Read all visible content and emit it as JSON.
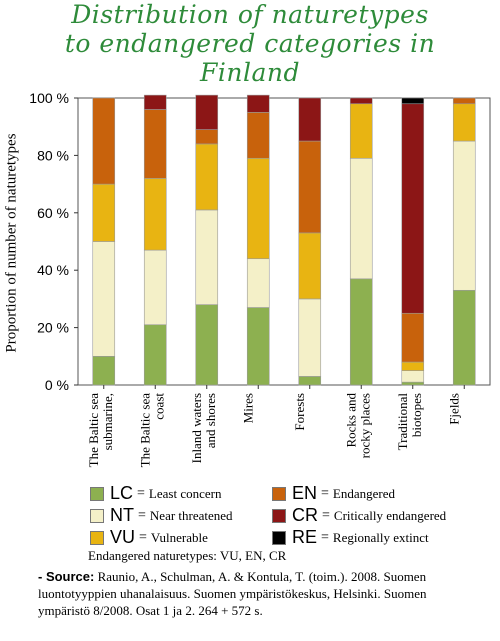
{
  "title_lines": [
    "Distribution of naturetypes",
    "to endangered categories in",
    "Finland"
  ],
  "chart_data": {
    "type": "bar",
    "stacked": true,
    "ylabel": "Proportion of number of naturetypes",
    "ylim": [
      0,
      100
    ],
    "yticks": [
      "0 %",
      "20 %",
      "40 %",
      "60 %",
      "80 %",
      "100 %"
    ],
    "grid": false,
    "categories": [
      [
        "The Baltic sea",
        "submarine,"
      ],
      [
        "The Baltic sea",
        "coast"
      ],
      [
        "Inland waters",
        "and shores"
      ],
      [
        "Mires"
      ],
      [
        "Forests"
      ],
      [
        "Rocks and",
        "rocky places"
      ],
      [
        "Traditional",
        "biotopes"
      ],
      [
        "Fjelds"
      ]
    ],
    "series": [
      {
        "name": "LC",
        "color": "#8db050",
        "values": [
          10,
          21,
          28,
          27,
          3,
          37,
          1,
          33
        ]
      },
      {
        "name": "NT",
        "color": "#f4f0c8",
        "values": [
          40,
          26,
          33,
          17,
          27,
          42,
          4,
          52
        ]
      },
      {
        "name": "VU",
        "color": "#e8b412",
        "values": [
          20,
          25,
          23,
          35,
          23,
          19,
          3,
          13
        ]
      },
      {
        "name": "EN",
        "color": "#c8620c",
        "values": [
          30,
          24,
          5,
          16,
          32,
          0,
          17,
          2
        ]
      },
      {
        "name": "CR",
        "color": "#8c1616",
        "values": [
          0,
          5,
          12,
          6,
          15,
          2,
          73,
          0
        ]
      },
      {
        "name": "RE",
        "color": "#000000",
        "values": [
          0,
          0,
          0,
          0,
          0,
          0,
          2,
          0
        ]
      }
    ]
  },
  "legend": [
    {
      "code": "LC",
      "label": "Least concern",
      "color": "#8db050"
    },
    {
      "code": "EN",
      "label": "Endangered",
      "color": "#c8620c"
    },
    {
      "code": "NT",
      "label": "Near threatened",
      "color": "#f4f0c8"
    },
    {
      "code": "CR",
      "label": "Critically endangered",
      "color": "#8c1616"
    },
    {
      "code": "VU",
      "label": "Vulnerable",
      "color": "#e8b412"
    },
    {
      "code": "RE",
      "label": "Regionally extinct",
      "color": "#000000"
    }
  ],
  "equals_sign": "=",
  "note": "Endangered naturetypes: VU, EN, CR",
  "source": {
    "label": "- Source:",
    "text": "Raunio, A., Schulman, A. & Kontula, T. (toim.). 2008. Suomen luontotyyppien uhanalaisuus. Suomen ympäristökeskus, Helsinki. Suomen ympäristö 8/2008. Osat 1 ja 2. 264 + 572 s."
  }
}
